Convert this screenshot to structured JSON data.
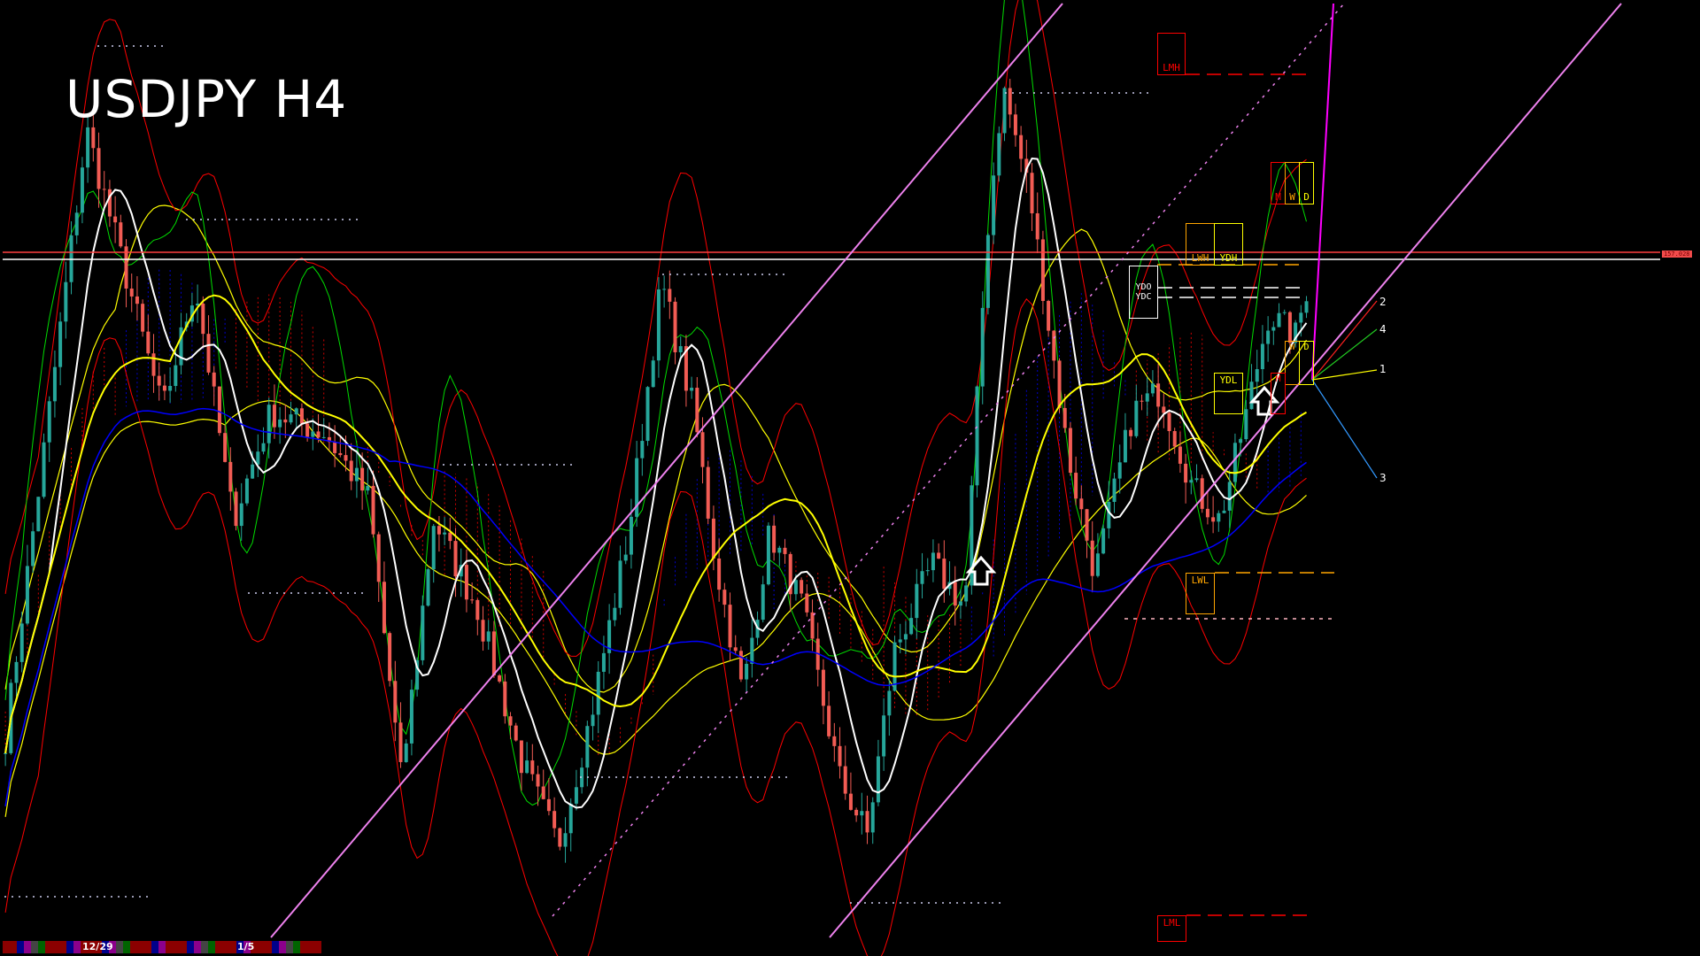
{
  "chart_data": {
    "type": "candlestick",
    "title": "USDJPY H4",
    "symbol": "USDJPY",
    "timeframe": "H4",
    "current_price_label": "157.028",
    "close_path": [
      147.93,
      159.36,
      154.06,
      156.5,
      152.02,
      154.06,
      153.65,
      152.42,
      147.12,
      152.02,
      150.38,
      147.52,
      145.89,
      148.34,
      151.81,
      156.5,
      154.06,
      151.2,
      148.75,
      151.81,
      150.38,
      147.12,
      146.1,
      149.57,
      151.2,
      150.38,
      157.32,
      160.18,
      158.14,
      155.28,
      153.24,
      151.0,
      154.06,
      154.46,
      152.63,
      152.02,
      154.06,
      155.89,
      155.48,
      156.81
    ],
    "time_labels": [
      "12/29",
      "1/5"
    ],
    "level_labels": {
      "lmh": "LMH",
      "lml": "LML",
      "lwh": "LWH",
      "lwl": "LWL",
      "ydh": "YDH",
      "ydl": "YDL",
      "ydo": "YDO",
      "ydc": "YDC",
      "m": "M",
      "w": "W",
      "d": "D"
    },
    "fan_labels": [
      "2",
      "4",
      "1",
      "3"
    ],
    "colors": {
      "bull": "#26a69a",
      "bear": "#f25c54",
      "ma_fast": "#ffffff",
      "ma_mid": "#ffff00",
      "ma_slow": "#0000ff",
      "channel": "#ee82ee",
      "cloud_bear": "#d00000",
      "cloud_bull": "#0000cc",
      "price_line": "#ff4040"
    },
    "grid": false
  }
}
